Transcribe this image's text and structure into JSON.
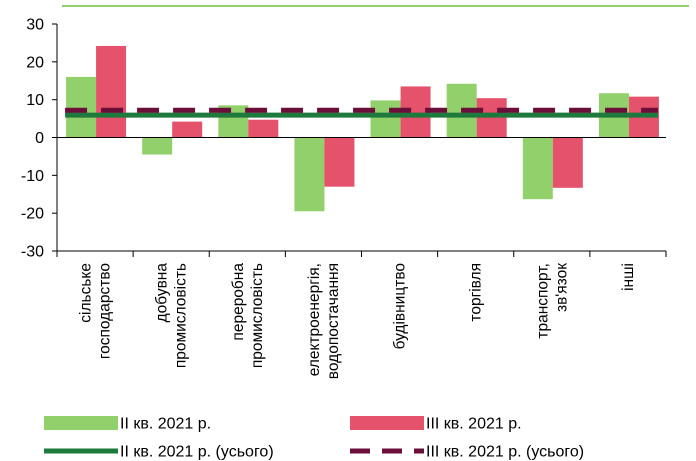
{
  "chart_data": {
    "type": "bar",
    "title": "",
    "xlabel": "",
    "ylabel": "",
    "ylim": [
      -30,
      30
    ],
    "yticks": [
      30,
      20,
      10,
      0,
      -10,
      -20,
      -30
    ],
    "categories": [
      [
        "сільське",
        "господарство"
      ],
      [
        "добувна",
        "промисловість"
      ],
      [
        "переробна",
        "промисловість"
      ],
      [
        "електроенергія,",
        "водопостачання"
      ],
      [
        "будівництво"
      ],
      [
        "торгівля"
      ],
      [
        "транспорт,",
        "зв'язок"
      ],
      [
        "інші"
      ]
    ],
    "series": [
      {
        "name": "ІІ кв. 2021 р.",
        "color": "#92d06c",
        "values": [
          16.0,
          -4.5,
          8.5,
          -19.5,
          9.8,
          14.2,
          -16.3,
          11.7
        ]
      },
      {
        "name": "ІІІ кв. 2021 р.",
        "color": "#e5526b",
        "values": [
          24.2,
          4.2,
          4.7,
          -13.0,
          13.5,
          10.4,
          -13.3,
          10.8
        ]
      }
    ],
    "reference_lines": [
      {
        "name": "ІІ кв. 2021 р. (усього)",
        "value": 5.9,
        "color": "#1e7a3c",
        "style": "solid"
      },
      {
        "name": "ІІІ кв. 2021 р. (усього)",
        "value": 7.2,
        "color": "#6b0f3a",
        "style": "dashed"
      }
    ],
    "grid": false,
    "legend_position": "bottom",
    "decoration_color": "#92d06c",
    "axis_color": "#000000"
  }
}
